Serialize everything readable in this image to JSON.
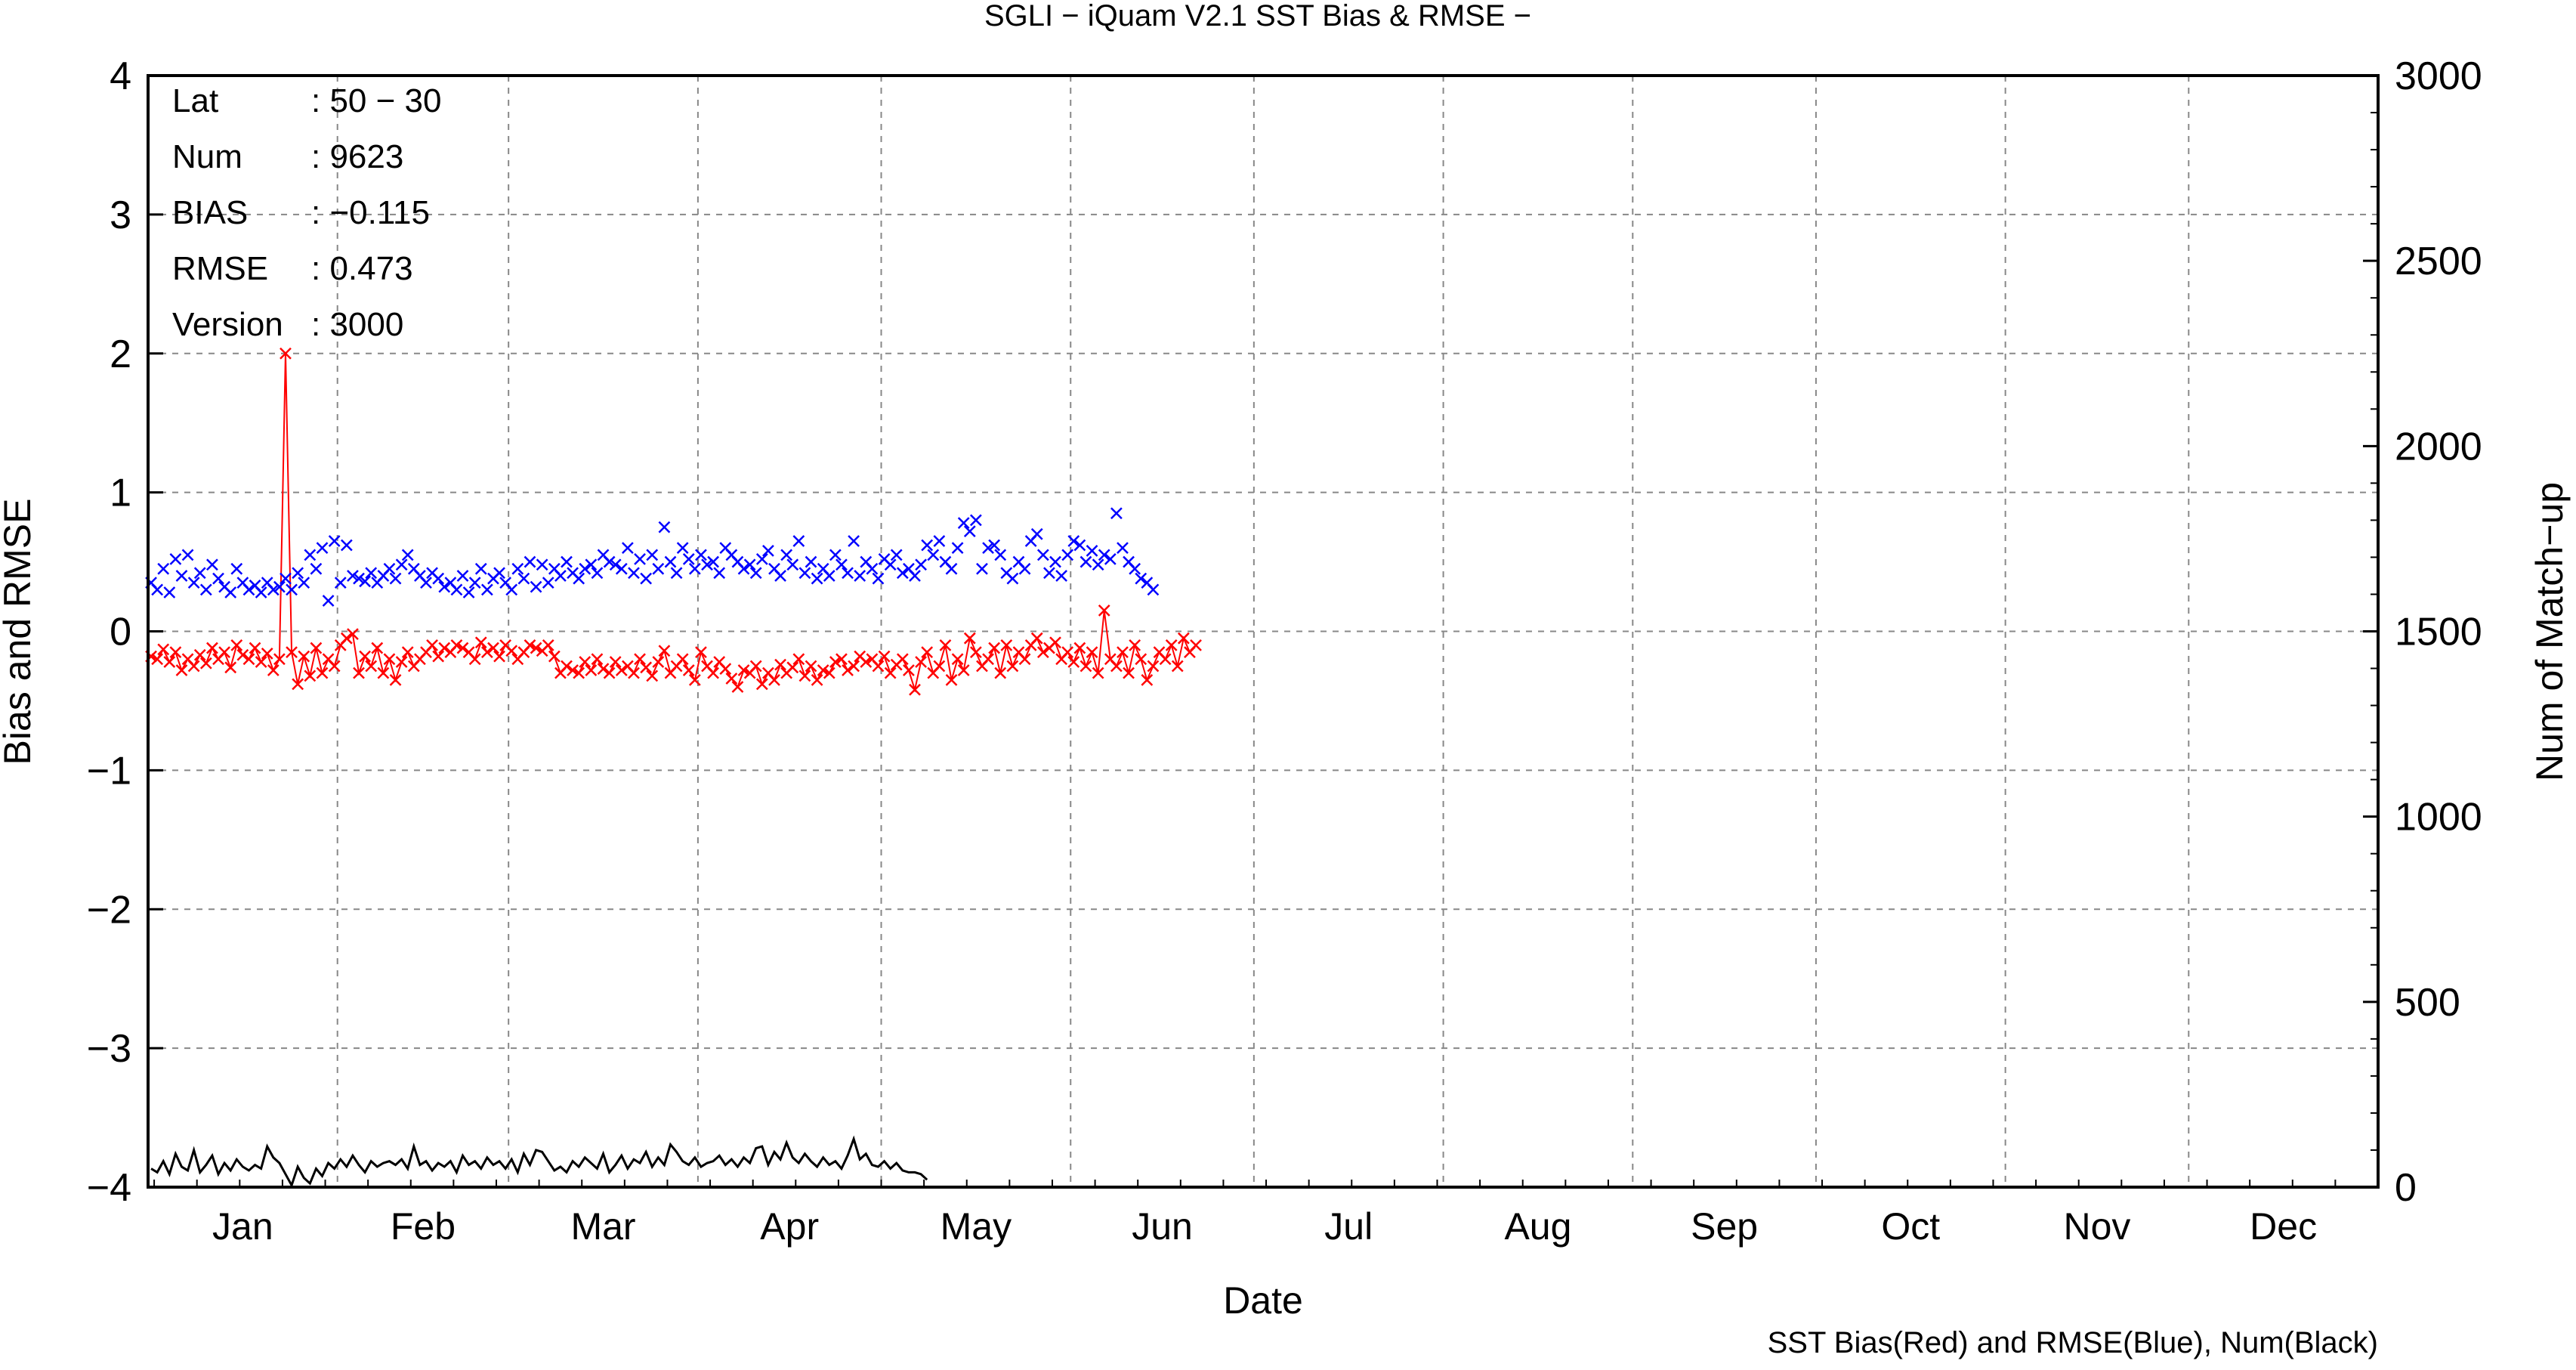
{
  "chart_data": {
    "type": "line",
    "title": "SGLI − iQuam V2.1 SST Bias & RMSE  −",
    "xlabel": "Date",
    "ylabel": "Bias and RMSE",
    "y2label": "Num of Match−up",
    "footnote": "SST Bias(Red) and RMSE(Blue), Num(Black)",
    "x_tick_labels": [
      "Jan",
      "Feb",
      "Mar",
      "Apr",
      "May",
      "Jun",
      "Jul",
      "Aug",
      "Sep",
      "Oct",
      "Nov",
      "Dec"
    ],
    "y_tick_labels": [
      "4",
      "3",
      "2",
      "1",
      "0",
      "−1",
      "−2",
      "−3",
      "−4"
    ],
    "y2_tick_labels": [
      "3000",
      "2500",
      "2000",
      "1500",
      "1000",
      "500",
      "0"
    ],
    "ylim": [
      -4,
      4
    ],
    "y2lim": [
      0,
      3000
    ],
    "xlim": [
      "2019-01-01",
      "2019-12-31"
    ],
    "grid": true,
    "stats": {
      "lat_label": "Lat",
      "lat_value": ": 50 − 30",
      "num_label": "Num",
      "num_value": ": 9623",
      "bias_label": "BIAS",
      "bias_value": ": −0.115",
      "rmse_label": "RMSE",
      "rmse_value": ": 0.473",
      "version_label": "Version",
      "version_value": ": 3000"
    },
    "series": [
      {
        "color": "#ff0000",
        "values": [
          -0.18,
          -0.2,
          -0.13,
          -0.22,
          -0.15,
          -0.28,
          -0.2,
          -0.25,
          -0.17,
          -0.23,
          -0.12,
          -0.2,
          -0.15,
          -0.26,
          -0.1,
          -0.17,
          -0.2,
          -0.12,
          -0.22,
          -0.16,
          -0.28,
          -0.2,
          2.0,
          -0.15,
          -0.38,
          -0.18,
          -0.32,
          -0.12,
          -0.3,
          -0.2,
          -0.25,
          -0.1,
          -0.05,
          -0.02,
          -0.3,
          -0.18,
          -0.25,
          -0.12,
          -0.3,
          -0.2,
          -0.35,
          -0.22,
          -0.15,
          -0.25,
          -0.2,
          -0.15,
          -0.1,
          -0.18,
          -0.12,
          -0.15,
          -0.1,
          -0.12,
          -0.15,
          -0.2,
          -0.08,
          -0.15,
          -0.12,
          -0.18,
          -0.1,
          -0.14,
          -0.2,
          -0.15,
          -0.1,
          -0.12,
          -0.14,
          -0.1,
          -0.18,
          -0.3,
          -0.25,
          -0.28,
          -0.3,
          -0.22,
          -0.28,
          -0.2,
          -0.27,
          -0.3,
          -0.22,
          -0.28,
          -0.25,
          -0.3,
          -0.2,
          -0.26,
          -0.32,
          -0.22,
          -0.14,
          -0.3,
          -0.25,
          -0.2,
          -0.28,
          -0.35,
          -0.15,
          -0.25,
          -0.3,
          -0.22,
          -0.27,
          -0.34,
          -0.4,
          -0.28,
          -0.3,
          -0.25,
          -0.38,
          -0.3,
          -0.35,
          -0.24,
          -0.3,
          -0.26,
          -0.2,
          -0.32,
          -0.25,
          -0.35,
          -0.28,
          -0.3,
          -0.22,
          -0.2,
          -0.28,
          -0.25,
          -0.18,
          -0.22,
          -0.2,
          -0.25,
          -0.18,
          -0.3,
          -0.24,
          -0.2,
          -0.28,
          -0.42,
          -0.22,
          -0.15,
          -0.3,
          -0.25,
          -0.1,
          -0.35,
          -0.2,
          -0.28,
          -0.05,
          -0.15,
          -0.25,
          -0.2,
          -0.12,
          -0.3,
          -0.1,
          -0.25,
          -0.15,
          -0.2,
          -0.1,
          -0.05,
          -0.15,
          -0.12,
          -0.08,
          -0.2,
          -0.15,
          -0.22,
          -0.12,
          -0.25,
          -0.15,
          -0.3,
          0.15,
          -0.2,
          -0.25,
          -0.15,
          -0.3,
          -0.1,
          -0.2,
          -0.35,
          -0.25,
          -0.15,
          -0.2,
          -0.1,
          -0.25,
          -0.05,
          -0.15,
          -0.1
        ]
      },
      {
        "color": "#0000ff",
        "values": [
          0.35,
          0.3,
          0.45,
          0.28,
          0.52,
          0.4,
          0.55,
          0.35,
          0.42,
          0.3,
          0.48,
          0.38,
          0.32,
          0.28,
          0.45,
          0.35,
          0.3,
          0.33,
          0.28,
          0.35,
          0.3,
          0.32,
          0.38,
          0.3,
          0.42,
          0.35,
          0.55,
          0.45,
          0.6,
          0.22,
          0.65,
          0.35,
          0.62,
          0.4,
          0.38,
          0.36,
          0.42,
          0.35,
          0.4,
          0.45,
          0.38,
          0.48,
          0.55,
          0.45,
          0.4,
          0.35,
          0.42,
          0.38,
          0.32,
          0.35,
          0.3,
          0.4,
          0.28,
          0.35,
          0.45,
          0.3,
          0.38,
          0.42,
          0.35,
          0.3,
          0.45,
          0.38,
          0.5,
          0.32,
          0.48,
          0.35,
          0.45,
          0.4,
          0.5,
          0.42,
          0.38,
          0.45,
          0.48,
          0.42,
          0.55,
          0.5,
          0.48,
          0.45,
          0.6,
          0.42,
          0.52,
          0.38,
          0.55,
          0.45,
          0.75,
          0.5,
          0.42,
          0.6,
          0.52,
          0.45,
          0.55,
          0.48,
          0.5,
          0.42,
          0.6,
          0.55,
          0.5,
          0.45,
          0.48,
          0.42,
          0.52,
          0.58,
          0.45,
          0.4,
          0.55,
          0.48,
          0.65,
          0.42,
          0.5,
          0.38,
          0.45,
          0.4,
          0.55,
          0.48,
          0.42,
          0.65,
          0.4,
          0.5,
          0.45,
          0.38,
          0.52,
          0.48,
          0.55,
          0.42,
          0.45,
          0.4,
          0.48,
          0.62,
          0.55,
          0.65,
          0.5,
          0.45,
          0.6,
          0.78,
          0.72,
          0.8,
          0.45,
          0.6,
          0.62,
          0.55,
          0.42,
          0.38,
          0.5,
          0.45,
          0.65,
          0.7,
          0.55,
          0.42,
          0.5,
          0.4,
          0.55,
          0.65,
          0.62,
          0.5,
          0.58,
          0.48,
          0.55,
          0.52,
          0.85,
          0.6,
          0.5,
          0.45,
          0.38,
          0.35,
          0.3
        ]
      },
      {
        "color": "#000000",
        "values": [
          50,
          40,
          70,
          35,
          90,
          55,
          45,
          100,
          40,
          60,
          85,
          35,
          65,
          45,
          75,
          55,
          45,
          60,
          50,
          110,
          80,
          65,
          35,
          5,
          55,
          25,
          10,
          50,
          30,
          65,
          50,
          75,
          55,
          85,
          60,
          40,
          70,
          55,
          65,
          70,
          60,
          75,
          50,
          110,
          60,
          70,
          45,
          65,
          55,
          70,
          40,
          85,
          60,
          70,
          50,
          80,
          60,
          70,
          50,
          75,
          40,
          90,
          60,
          100,
          95,
          70,
          45,
          55,
          40,
          70,
          55,
          80,
          65,
          50,
          90,
          40,
          60,
          85,
          50,
          75,
          65,
          95,
          55,
          80,
          60,
          115,
          95,
          70,
          60,
          80,
          55,
          65,
          70,
          85,
          60,
          75,
          55,
          80,
          65,
          105,
          110,
          60,
          95,
          75,
          120,
          80,
          65,
          90,
          70,
          55,
          80,
          60,
          70,
          50,
          85,
          130,
          75,
          90,
          60,
          55,
          70,
          50,
          65,
          45,
          40,
          40,
          35,
          20
        ]
      }
    ]
  }
}
